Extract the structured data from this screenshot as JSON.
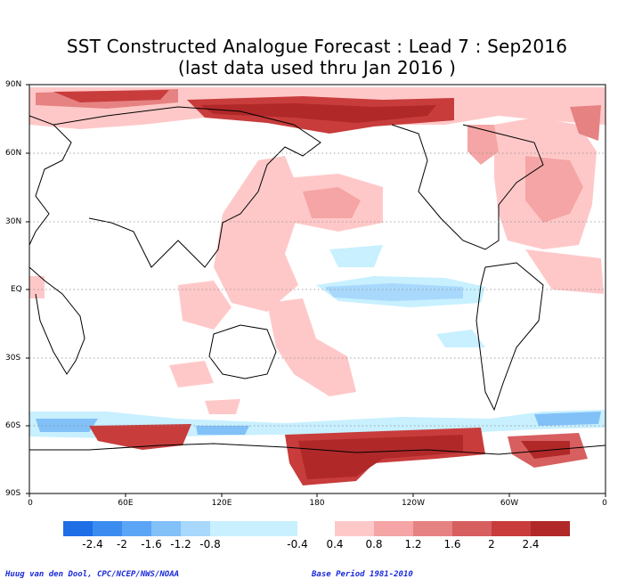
{
  "title": {
    "line1": "SST Constructed Analogue Forecast : Lead 7 : Sep2016",
    "line2": "(last data used thru Jan 2016 )"
  },
  "lat_labels": [
    "90N",
    "60N",
    "30N",
    "EQ",
    "30S",
    "60S",
    "90S"
  ],
  "lon_labels": [
    "0",
    "60E",
    "120E",
    "180",
    "120W",
    "60W",
    "0"
  ],
  "colorbar": {
    "labels": [
      "-2.4",
      "-2",
      "-1.6",
      "-1.2",
      "-0.8",
      "-0.4",
      "0.4",
      "0.8",
      "1.2",
      "1.6",
      "2",
      "2.4"
    ],
    "negative_colors": [
      "#1e6ee6",
      "#3c8cf0",
      "#5aa5f5",
      "#82c0f8",
      "#a8d8fb",
      "#c8f0ff"
    ],
    "positive_colors": [
      "#ffc8c8",
      "#f5a5a5",
      "#e68282",
      "#d75f5f",
      "#c83c3c",
      "#b02828"
    ]
  },
  "credits": {
    "left": "Huug van den Dool, CPC/NCEP/NWS/NOAA",
    "right": "Base Period 1981-2010"
  }
}
